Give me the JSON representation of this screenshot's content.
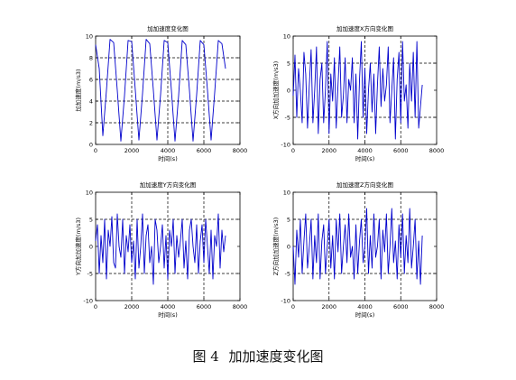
{
  "figure_caption": {
    "number": "图 4",
    "text": "加加速度变化图"
  },
  "chart_data": [
    {
      "type": "line",
      "title": "加加速度变化图",
      "xlabel": "时间(s)",
      "ylabel": "加加速度(m/s3)",
      "xlim": [
        0,
        8000
      ],
      "ylim": [
        0,
        10
      ],
      "xticks": [
        "0",
        "2000",
        "4000",
        "6000",
        "8000"
      ],
      "yticks": [
        "0",
        "2",
        "4",
        "6",
        "8",
        "10"
      ],
      "grid": "dashed",
      "gridlines_x": [
        2000,
        4000,
        6000
      ],
      "gridlines_y": [
        2,
        4,
        6,
        8
      ],
      "series": [
        {
          "color": "#0000cc",
          "x": [
            0,
            200,
            400,
            600,
            800,
            1000,
            1200,
            1400,
            1600,
            1800,
            2000,
            2200,
            2400,
            2600,
            2800,
            3000,
            3200,
            3400,
            3600,
            3800,
            4000,
            4200,
            4400,
            4600,
            4800,
            5000,
            5200,
            5400,
            5600,
            5800,
            6000,
            6200,
            6400,
            6600,
            6800,
            7000,
            7200
          ],
          "y": [
            9.2,
            7,
            0.8,
            5,
            9.7,
            9.4,
            5,
            0.3,
            4.5,
            9.6,
            9.5,
            5,
            0.4,
            4.7,
            9.7,
            9.3,
            5,
            0.4,
            4.6,
            9.6,
            9.4,
            5,
            0.3,
            4.5,
            9.6,
            9.2,
            5,
            0.3,
            4.6,
            9.6,
            9.2,
            5,
            0.4,
            4.8,
            9.6,
            9.3,
            7
          ]
        }
      ]
    },
    {
      "type": "line",
      "title": "加加速度X方向变化图",
      "xlabel": "时间(s)",
      "ylabel": "X方向加加速度(m/s3)",
      "xlim": [
        0,
        8000
      ],
      "ylim": [
        -10,
        10
      ],
      "xticks": [
        "0",
        "2000",
        "4000",
        "6000",
        "8000"
      ],
      "yticks": [
        "-10",
        "-5",
        "0",
        "5",
        "10"
      ],
      "grid": "dashed",
      "gridlines_x": [
        2000,
        4000,
        6000
      ],
      "gridlines_y": [
        -5,
        5
      ],
      "series": [
        {
          "color": "#0000cc",
          "x": [
            0,
            100,
            200,
            300,
            400,
            500,
            600,
            700,
            800,
            900,
            1000,
            1100,
            1200,
            1300,
            1400,
            1500,
            1600,
            1700,
            1800,
            1900,
            2000,
            2100,
            2200,
            2300,
            2400,
            2500,
            2600,
            2700,
            2800,
            2900,
            3000,
            3100,
            3200,
            3300,
            3400,
            3500,
            3600,
            3700,
            3800,
            3900,
            4000,
            4100,
            4200,
            4300,
            4400,
            4500,
            4600,
            4700,
            4800,
            4900,
            5000,
            5100,
            5200,
            5300,
            5400,
            5500,
            5600,
            5700,
            5800,
            5900,
            6000,
            6100,
            6200,
            6300,
            6400,
            6500,
            6600,
            6700,
            6800,
            6900,
            7000,
            7100,
            7200
          ],
          "y": [
            -1,
            6.5,
            -5,
            4,
            0,
            -6,
            7,
            3,
            -7,
            1,
            7.5,
            -6,
            0,
            8,
            -8,
            2,
            5,
            -6,
            0,
            9,
            -8,
            3,
            -2,
            6,
            -7,
            1,
            8,
            -5,
            -1,
            6,
            -6,
            2,
            0,
            6,
            -6,
            3,
            -9,
            2,
            9,
            -5,
            4,
            -8,
            0,
            5,
            -4,
            3,
            -8,
            1,
            8,
            -3,
            4,
            -2,
            1,
            8,
            -6,
            0,
            6,
            -9,
            2,
            7,
            -6,
            9,
            -2,
            1,
            -7,
            5,
            -2,
            7,
            -5,
            9,
            -7,
            -3,
            1
          ]
        }
      ]
    },
    {
      "type": "line",
      "title": "加加速度Y方向变化图",
      "xlabel": "时间(s)",
      "ylabel": "Y方向加加速度(m/s3)",
      "xlim": [
        0,
        8000
      ],
      "ylim": [
        -10,
        10
      ],
      "xticks": [
        "0",
        "2000",
        "4000",
        "6000",
        "8000"
      ],
      "yticks": [
        "-10",
        "-5",
        "0",
        "5",
        "10"
      ],
      "grid": "dashed",
      "gridlines_x": [
        2000,
        4000,
        6000
      ],
      "gridlines_y": [
        -5,
        5
      ],
      "series": [
        {
          "color": "#0000cc",
          "x": [
            0,
            100,
            200,
            300,
            400,
            500,
            600,
            700,
            800,
            900,
            1000,
            1100,
            1200,
            1300,
            1400,
            1500,
            1600,
            1700,
            1800,
            1900,
            2000,
            2100,
            2200,
            2300,
            2400,
            2500,
            2600,
            2700,
            2800,
            2900,
            3000,
            3100,
            3200,
            3300,
            3400,
            3500,
            3600,
            3700,
            3800,
            3900,
            4000,
            4100,
            4200,
            4300,
            4400,
            4500,
            4600,
            4700,
            4800,
            4900,
            5000,
            5100,
            5200,
            5300,
            5400,
            5500,
            5600,
            5700,
            5800,
            5900,
            6000,
            6100,
            6200,
            6300,
            6400,
            6500,
            6600,
            6700,
            6800,
            6900,
            7000,
            7100,
            7200
          ],
          "y": [
            1,
            4,
            -5,
            2,
            -3,
            5,
            -6,
            3,
            0,
            5.5,
            -3,
            -4,
            6,
            0,
            -2,
            5,
            -5,
            2,
            -1,
            4,
            -3,
            1,
            -6,
            5,
            -4,
            0,
            6,
            -5,
            2,
            4,
            -3,
            0,
            -7,
            5,
            3,
            -3,
            0,
            4,
            -4,
            2,
            -6,
            3,
            0,
            5,
            -5,
            2,
            -2,
            1,
            5,
            -4,
            1,
            -6,
            3,
            5,
            0,
            -3,
            4,
            -5,
            1,
            4,
            -3,
            5,
            0,
            -5,
            3,
            -6,
            2,
            0,
            6,
            -4,
            3,
            -1,
            2
          ]
        }
      ]
    },
    {
      "type": "line",
      "title": "加加速度Z方向变化图",
      "xlabel": "时间(s)",
      "ylabel": "Z方向加加速度(m/s3)",
      "xlim": [
        0,
        8000
      ],
      "ylim": [
        -10,
        10
      ],
      "xticks": [
        "0",
        "2000",
        "4000",
        "6000",
        "8000"
      ],
      "yticks": [
        "-10",
        "-5",
        "0",
        "5",
        "10"
      ],
      "grid": "dashed",
      "gridlines_x": [
        2000,
        4000,
        6000
      ],
      "gridlines_y": [
        -5,
        5
      ],
      "series": [
        {
          "color": "#0000cc",
          "x": [
            0,
            100,
            200,
            300,
            400,
            500,
            600,
            700,
            800,
            900,
            1000,
            1100,
            1200,
            1300,
            1400,
            1500,
            1600,
            1700,
            1800,
            1900,
            2000,
            2100,
            2200,
            2300,
            2400,
            2500,
            2600,
            2700,
            2800,
            2900,
            3000,
            3100,
            3200,
            3300,
            3400,
            3500,
            3600,
            3700,
            3800,
            3900,
            4000,
            4100,
            4200,
            4300,
            4400,
            4500,
            4600,
            4700,
            4800,
            4900,
            5000,
            5100,
            5200,
            5300,
            5400,
            5500,
            5600,
            5700,
            5800,
            5900,
            6000,
            6100,
            6200,
            6300,
            6400,
            6500,
            6600,
            6700,
            6800,
            6900,
            7000,
            7100,
            7200
          ],
          "y": [
            0,
            -7,
            3,
            -2,
            5,
            -5,
            1,
            6,
            -4,
            0,
            5,
            -6,
            2,
            -3,
            6,
            -6,
            1,
            4,
            -5,
            0,
            5,
            -4,
            2,
            -6,
            5,
            -1,
            6,
            -5,
            0,
            4,
            -3,
            6,
            -2,
            0,
            -6,
            4,
            -5,
            1,
            5,
            -3,
            0,
            7,
            -5,
            2,
            -4,
            6,
            -2,
            0,
            5,
            -6,
            3,
            -1,
            6,
            -5,
            0,
            7,
            -3,
            1,
            -6,
            4,
            -2,
            6,
            -5,
            2,
            -3,
            7,
            -4,
            0,
            5,
            -6,
            1,
            -7,
            2
          ]
        }
      ]
    }
  ]
}
